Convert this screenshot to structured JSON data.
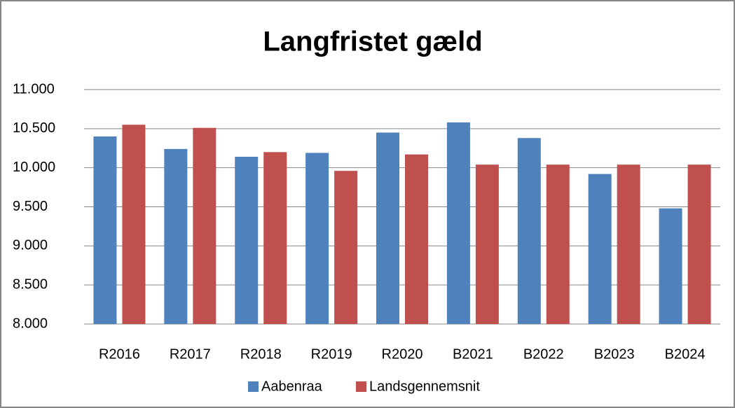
{
  "chart_data": {
    "type": "bar",
    "title": "Langfristet gæld",
    "categories": [
      "R2016",
      "R2017",
      "R2018",
      "R2019",
      "R2020",
      "B2021",
      "B2022",
      "B2023",
      "B2024"
    ],
    "series": [
      {
        "name": "Aabenraa",
        "color": "#4f81bd",
        "values": [
          10400,
          10240,
          10140,
          10190,
          10450,
          10580,
          10380,
          9920,
          9480
        ]
      },
      {
        "name": "Landsgennemsnit",
        "color": "#c0504d",
        "values": [
          10550,
          10510,
          10200,
          9960,
          10170,
          10040,
          10040,
          10040,
          10040
        ]
      }
    ],
    "ylim": [
      8000,
      11000
    ],
    "yticks": [
      {
        "value": 8000,
        "label": "8.000"
      },
      {
        "value": 8500,
        "label": "8.500"
      },
      {
        "value": 9000,
        "label": "9.000"
      },
      {
        "value": 9500,
        "label": "9.500"
      },
      {
        "value": 10000,
        "label": "10.000"
      },
      {
        "value": 10500,
        "label": "10.500"
      },
      {
        "value": 11000,
        "label": "11.000"
      }
    ],
    "grid": true,
    "legend": "bottom"
  }
}
